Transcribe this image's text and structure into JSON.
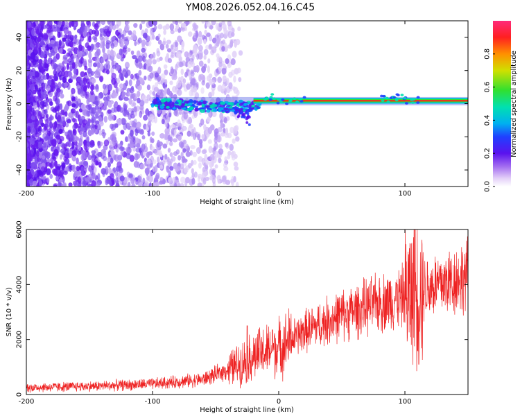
{
  "title": "YM08.2026.052.04.16.C45",
  "chart_data": [
    {
      "type": "heatmap",
      "xlabel": "Height of straight line (km)",
      "ylabel": "Frequency (Hz)",
      "xlim": [
        -200,
        150
      ],
      "ylim": [
        -50,
        50
      ],
      "xticks": [
        -200,
        -100,
        0,
        100
      ],
      "yticks": [
        -40,
        -20,
        0,
        20,
        40
      ],
      "colorbar": {
        "label": "Normalized spectral amplitude",
        "range": [
          0,
          1
        ],
        "ticks": [
          "0.0",
          "0.2",
          "0.4",
          "0.6",
          "0.8"
        ]
      },
      "description_series": [
        {
          "name": "diffuse noise region",
          "x_range": [
            -200,
            -40
          ],
          "y_range": [
            -50,
            50
          ]
        },
        {
          "name": "signal band",
          "x_range": [
            -100,
            150
          ],
          "center_hz": [
            1,
            3
          ]
        }
      ]
    },
    {
      "type": "line",
      "xlabel": "Height of straight line (km)",
      "ylabel": "SNR (10 * v/v)",
      "xlim": [
        -200,
        150
      ],
      "ylim": [
        0,
        6000
      ],
      "xticks": [
        -200,
        -100,
        0,
        100
      ],
      "yticks": [
        0,
        2000,
        4000,
        6000
      ],
      "color": "#ee2222",
      "trend": {
        "x": [
          -200,
          -150,
          -100,
          -60,
          -40,
          -20,
          0,
          20,
          50,
          100,
          110,
          150
        ],
        "y": [
          250,
          300,
          380,
          550,
          900,
          1400,
          1700,
          2300,
          2900,
          3600,
          3800,
          4300
        ]
      },
      "spikes": [
        {
          "x": -25,
          "y": 2500
        },
        {
          "x": -5,
          "y": 2350
        },
        {
          "x": 108,
          "y": 6000
        },
        {
          "x": 111,
          "y": 1100
        }
      ]
    }
  ]
}
